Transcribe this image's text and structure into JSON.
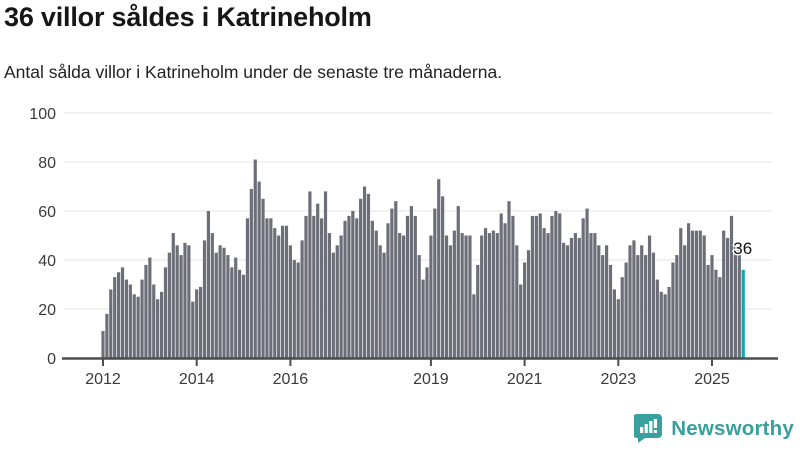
{
  "header": {
    "title": "36 villor såldes i Katrineholm",
    "subtitle": "Antal sålda villor i Katrineholm under de senaste tre månaderna."
  },
  "chart_data": {
    "type": "bar",
    "title": "36 villor såldes i Katrineholm",
    "subtitle": "Antal sålda villor i Katrineholm under de senaste tre månaderna.",
    "x_start": "2012-01",
    "x_frequency": "monthly-rolling-3-month-window",
    "ylim": [
      0,
      100
    ],
    "grid": true,
    "yticks": [
      0,
      20,
      40,
      60,
      80,
      100
    ],
    "xticks": [
      {
        "label": "2012",
        "month_index": 0
      },
      {
        "label": "2014",
        "month_index": 24
      },
      {
        "label": "2016",
        "month_index": 48
      },
      {
        "label": "2019",
        "month_index": 84
      },
      {
        "label": "2021",
        "month_index": 108
      },
      {
        "label": "2023",
        "month_index": 132
      },
      {
        "label": "2025",
        "month_index": 156
      }
    ],
    "values": [
      11,
      18,
      28,
      33,
      35,
      37,
      32,
      30,
      26,
      25,
      32,
      38,
      41,
      30,
      24,
      27,
      37,
      43,
      51,
      46,
      42,
      47,
      46,
      23,
      28,
      29,
      48,
      60,
      51,
      43,
      46,
      45,
      42,
      37,
      41,
      36,
      34,
      57,
      69,
      81,
      72,
      65,
      57,
      57,
      53,
      50,
      54,
      54,
      46,
      40,
      39,
      48,
      58,
      68,
      58,
      63,
      57,
      68,
      51,
      43,
      46,
      50,
      56,
      58,
      60,
      57,
      65,
      70,
      67,
      56,
      52,
      46,
      43,
      55,
      61,
      64,
      51,
      50,
      58,
      62,
      58,
      42,
      32,
      37,
      50,
      61,
      73,
      66,
      50,
      46,
      52,
      62,
      51,
      50,
      50,
      26,
      38,
      50,
      53,
      51,
      52,
      51,
      59,
      55,
      64,
      58,
      46,
      30,
      39,
      44,
      58,
      58,
      59,
      53,
      51,
      58,
      60,
      59,
      47,
      46,
      49,
      51,
      49,
      57,
      61,
      51,
      51,
      46,
      42,
      46,
      38,
      28,
      24,
      33,
      39,
      46,
      48,
      42,
      46,
      42,
      50,
      43,
      32,
      27,
      26,
      29,
      39,
      42,
      53,
      46,
      55,
      52,
      52,
      52,
      50,
      38,
      42,
      36,
      33,
      52,
      49,
      58,
      47,
      46,
      36
    ],
    "bar_color": "#6d6f78",
    "highlight_color": "#17a5ad",
    "highlight_index": 164,
    "annotation": {
      "label": "36",
      "value": 36
    }
  },
  "footer": {
    "brand": "Newsworthy",
    "brand_color": "#38a09e"
  }
}
